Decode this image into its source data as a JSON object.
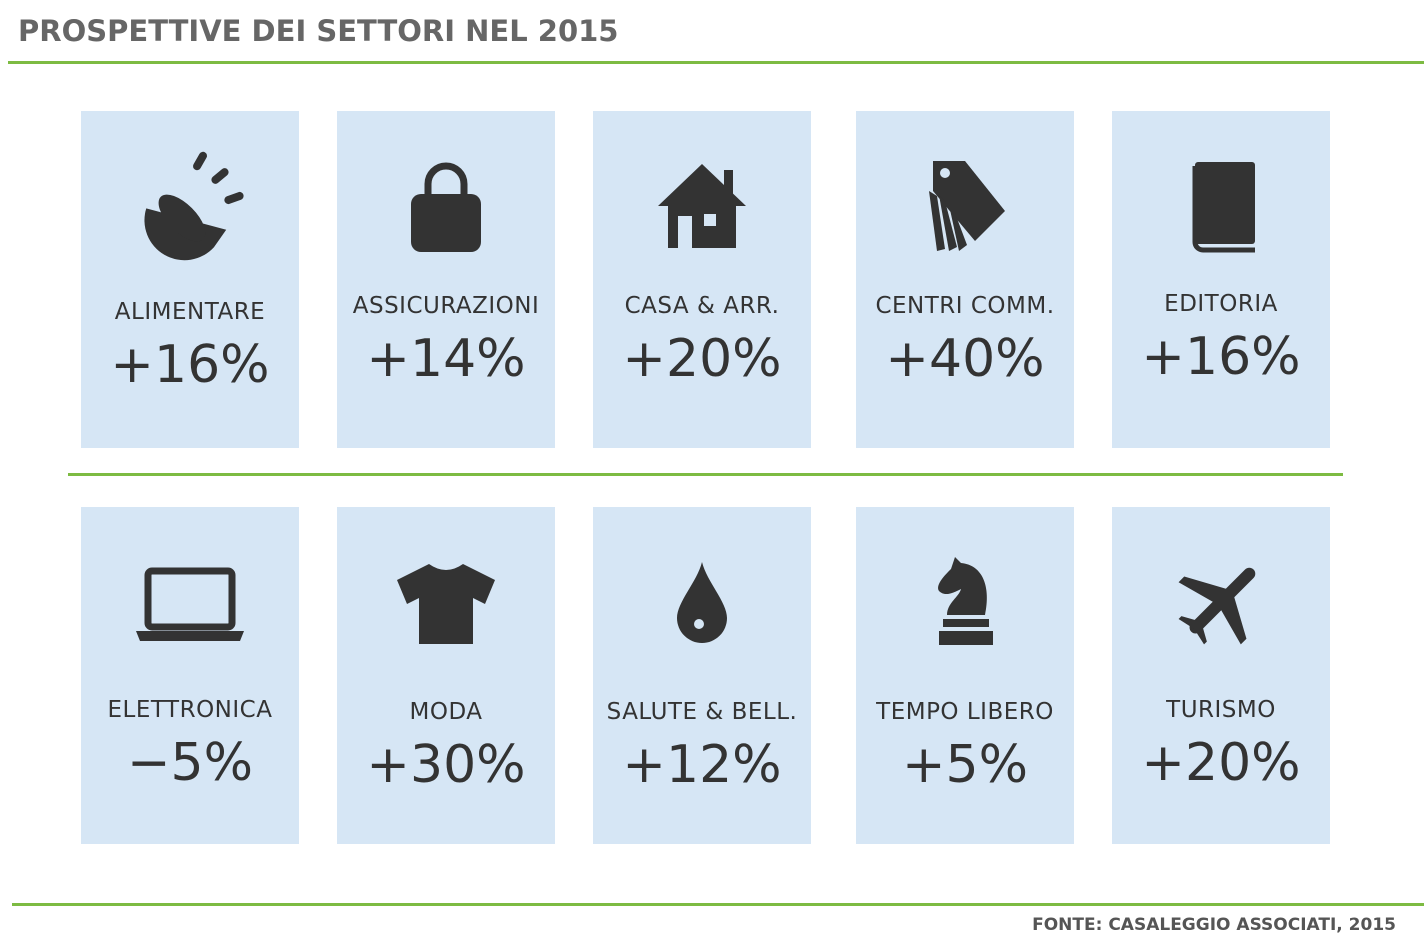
{
  "title": "PROSPETTIVE DEI SETTORI NEL 2015",
  "source": "FONTE: CASALEGGIO ASSOCIATI, 2015",
  "colors": {
    "accent": "#7dbb42",
    "card": "#d6e6f5",
    "icon": "#333333"
  },
  "sectors": [
    {
      "label": "ALIMENTARE",
      "value": "+16%",
      "icon": "food-bowl-icon"
    },
    {
      "label": "ASSICURAZIONI",
      "value": "+14%",
      "icon": "padlock-icon"
    },
    {
      "label": "CASA & ARR.",
      "value": "+20%",
      "icon": "house-icon"
    },
    {
      "label": "CENTRI COMM.",
      "value": "+40%",
      "icon": "price-tags-icon"
    },
    {
      "label": "EDITORIA",
      "value": "+16%",
      "icon": "book-icon"
    },
    {
      "label": "ELETTRONICA",
      "value": "−5%",
      "icon": "laptop-icon"
    },
    {
      "label": "MODA",
      "value": "+30%",
      "icon": "tshirt-icon"
    },
    {
      "label": "SALUTE & BELL.",
      "value": "+12%",
      "icon": "drop-icon"
    },
    {
      "label": "TEMPO LIBERO",
      "value": "+5%",
      "icon": "chess-knight-icon"
    },
    {
      "label": "TURISMO",
      "value": "+20%",
      "icon": "airplane-icon"
    }
  ]
}
